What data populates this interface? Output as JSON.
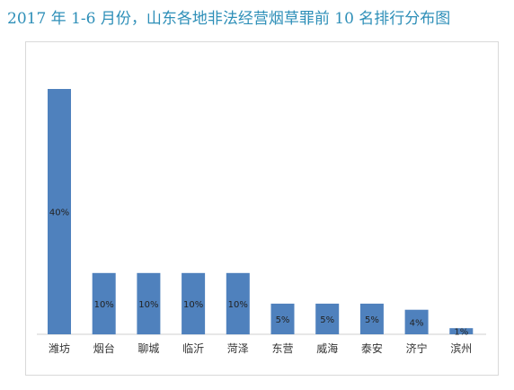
{
  "chart_data": {
    "type": "bar",
    "title": "2017 年 1-6 月份，山东各地非法经营烟草罪前 10 名排行分布图",
    "xlabel": "",
    "ylabel": "",
    "categories": [
      "潍坊",
      "烟台",
      "聊城",
      "临沂",
      "菏泽",
      "东营",
      "威海",
      "泰安",
      "济宁",
      "滨州"
    ],
    "values": [
      40,
      10,
      10,
      10,
      10,
      5,
      5,
      5,
      4,
      1
    ],
    "data_labels": [
      "40%",
      "10%",
      "10%",
      "10%",
      "10%",
      "5%",
      "5%",
      "5%",
      "4%",
      "1%"
    ],
    "unit": "%",
    "ylim": [
      0,
      40
    ],
    "grid": false,
    "legend": "none",
    "bar_color": "#4f81bd",
    "title_color": "#2e8fb8"
  }
}
